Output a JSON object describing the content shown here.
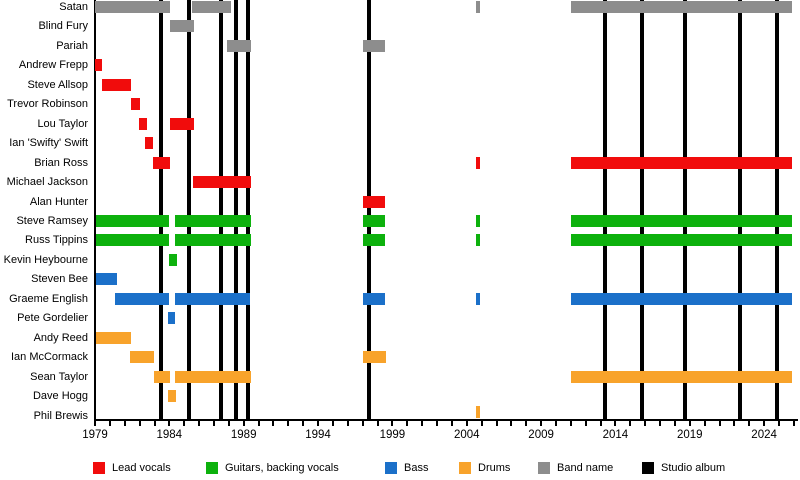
{
  "chart_data": {
    "type": "bar",
    "subtype": "band-membership-timeline",
    "axis": {
      "x_min": 1979,
      "x_max": 2026,
      "labeled_ticks": [
        1979,
        1984,
        1989,
        1994,
        1999,
        2004,
        2009,
        2014,
        2019,
        2024
      ],
      "minor_tick_every_years": 1,
      "grid": "off"
    },
    "colors": {
      "red": "#f10c0c",
      "green": "#0db10d",
      "blue": "#1b70c9",
      "orange": "#f8a32b",
      "gray": "#8d8d8d",
      "black": "#000000"
    },
    "rows": [
      {
        "label": "Satan",
        "color": "gray",
        "segments": [
          [
            1979.0,
            1984.05
          ],
          [
            1985.5,
            1988.15
          ],
          [
            2004.6,
            2004.88
          ],
          [
            2011.0,
            2025.9
          ]
        ]
      },
      {
        "label": "Blind Fury",
        "color": "gray",
        "segments": [
          [
            1984.05,
            1985.68
          ]
        ]
      },
      {
        "label": "Pariah",
        "color": "gray",
        "segments": [
          [
            1987.9,
            1989.5
          ],
          [
            1997.05,
            1998.5
          ]
        ]
      },
      {
        "label": "Andrew Frepp",
        "color": "red",
        "segments": [
          [
            1979.0,
            1979.5
          ]
        ]
      },
      {
        "label": "Steve Allsop",
        "color": "red",
        "segments": [
          [
            1979.45,
            1981.4
          ]
        ]
      },
      {
        "label": "Trevor Robinson",
        "color": "red",
        "segments": [
          [
            1981.4,
            1982.0
          ]
        ]
      },
      {
        "label": "Lou Taylor",
        "color": "red",
        "segments": [
          [
            1981.95,
            1982.5
          ],
          [
            1984.05,
            1985.68
          ]
        ]
      },
      {
        "label": "Ian 'Swifty' Swift",
        "color": "red",
        "segments": [
          [
            1982.35,
            1982.92
          ]
        ]
      },
      {
        "label": "Brian Ross",
        "color": "red",
        "segments": [
          [
            1982.92,
            1984.07
          ],
          [
            2004.6,
            2004.88
          ],
          [
            2011.0,
            2025.9
          ]
        ]
      },
      {
        "label": "Michael Jackson",
        "color": "red",
        "segments": [
          [
            1985.6,
            1989.47
          ]
        ]
      },
      {
        "label": "Alan Hunter",
        "color": "red",
        "segments": [
          [
            1997.0,
            1998.5
          ]
        ]
      },
      {
        "label": "Steve Ramsey",
        "color": "green",
        "segments": [
          [
            1979.05,
            1983.95
          ],
          [
            1984.35,
            1989.5
          ],
          [
            1997.0,
            1998.5
          ],
          [
            2004.6,
            2004.88
          ],
          [
            2011.0,
            2025.9
          ]
        ]
      },
      {
        "label": "Russ Tippins",
        "color": "green",
        "segments": [
          [
            1979.05,
            1983.95
          ],
          [
            1984.35,
            1989.5
          ],
          [
            1997.0,
            1998.5
          ],
          [
            2004.6,
            2004.88
          ],
          [
            2011.0,
            2025.9
          ]
        ]
      },
      {
        "label": "Kevin Heybourne",
        "color": "green",
        "segments": [
          [
            1984.0,
            1984.5
          ]
        ]
      },
      {
        "label": "Steven Bee",
        "color": "blue",
        "segments": [
          [
            1979.07,
            1980.5
          ]
        ]
      },
      {
        "label": "Graeme English",
        "color": "blue",
        "segments": [
          [
            1980.35,
            1983.95
          ],
          [
            1984.35,
            1989.45
          ],
          [
            1997.0,
            1998.5
          ],
          [
            2004.6,
            2004.88
          ],
          [
            2011.0,
            2025.9
          ]
        ]
      },
      {
        "label": "Pete Gordelier",
        "color": "blue",
        "segments": [
          [
            1983.9,
            1984.4
          ]
        ]
      },
      {
        "label": "Andy Reed",
        "color": "orange",
        "segments": [
          [
            1979.05,
            1981.4
          ]
        ]
      },
      {
        "label": "Ian McCormack",
        "color": "orange",
        "segments": [
          [
            1981.35,
            1983.0
          ],
          [
            1997.0,
            1998.55
          ]
        ]
      },
      {
        "label": "Sean Taylor",
        "color": "orange",
        "segments": [
          [
            1982.95,
            1984.05
          ],
          [
            1984.35,
            1989.5
          ],
          [
            2011.0,
            2025.9
          ]
        ]
      },
      {
        "label": "Dave Hogg",
        "color": "orange",
        "segments": [
          [
            1983.9,
            1984.45
          ]
        ]
      },
      {
        "label": "Phil Brewis",
        "color": "orange",
        "segments": [
          [
            2004.6,
            2004.88
          ]
        ]
      }
    ],
    "studio_album_marker_years": [
      1983.45,
      1985.3,
      1987.45,
      1988.45,
      1989.3,
      1997.45,
      2013.3,
      2015.75,
      2018.7,
      2022.4,
      2024.87
    ],
    "legend": [
      {
        "label": "Lead vocals",
        "color": "red"
      },
      {
        "label": "Guitars, backing vocals",
        "color": "green"
      },
      {
        "label": "Bass",
        "color": "blue"
      },
      {
        "label": "Drums",
        "color": "orange"
      },
      {
        "label": "Band name",
        "color": "gray"
      },
      {
        "label": "Studio album",
        "color": "black"
      }
    ],
    "legend_position": "bottom"
  }
}
